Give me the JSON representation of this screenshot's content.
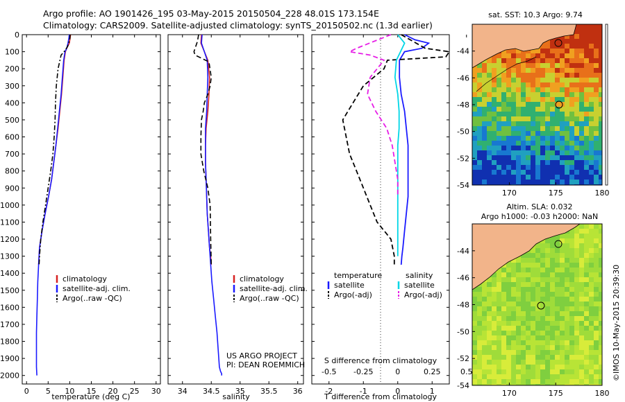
{
  "header": {
    "line1": "Argo profile: AO 1901426_195 03-May-2015 20150504_228 48.01S 173.154E",
    "line2": "Climatology: CARS2009. Satellite-adjusted climatology: synTS_20150502.nc (1.3d earlier)"
  },
  "colors": {
    "climatology": "#d62020",
    "satellite": "#1a1aff",
    "argo": "#000000",
    "salinity_sat": "#00d6e6",
    "salinity_argo": "#e61ee6"
  },
  "chart_data": [
    {
      "type": "line",
      "id": "temperature",
      "xlabel": "temperature (deg C)",
      "xlim": [
        -1,
        31
      ],
      "ylim": [
        2050,
        0
      ],
      "xticks": [
        "0",
        "5",
        "10",
        "15",
        "20",
        "25",
        "30"
      ],
      "yticks": [
        "0",
        "100",
        "200",
        "300",
        "400",
        "500",
        "600",
        "700",
        "800",
        "900",
        "1000",
        "1100",
        "1200",
        "1300",
        "1400",
        "1500",
        "1600",
        "1700",
        "1800",
        "1900",
        "2000"
      ],
      "legend": [
        "climatology",
        "satellite-adj. clim.",
        "Argo(..raw -QC)"
      ],
      "series": [
        {
          "name": "climatology",
          "style": "solid",
          "color": "#d62020",
          "x": [
            10.2,
            10.1,
            9.9,
            9.3,
            9.0,
            8.7,
            8.4,
            8.1,
            7.7,
            7.3,
            6.8,
            6.3,
            5.8,
            5.1,
            4.3,
            3.6,
            3.0,
            2.8
          ],
          "y": [
            0,
            20,
            50,
            80,
            100,
            150,
            250,
            350,
            450,
            550,
            650,
            750,
            850,
            950,
            1050,
            1150,
            1250,
            1350
          ]
        },
        {
          "name": "satellite-adj. clim.",
          "style": "solid",
          "color": "#1a1aff",
          "x": [
            9.9,
            9.8,
            9.6,
            9.3,
            8.9,
            8.6,
            8.3,
            8.0,
            7.6,
            7.2,
            6.8,
            6.3,
            5.8,
            5.1,
            4.3,
            3.6,
            3.0,
            2.8,
            2.6,
            2.5,
            2.4,
            2.3,
            2.3,
            2.3,
            2.4
          ],
          "y": [
            0,
            20,
            50,
            80,
            100,
            150,
            250,
            350,
            450,
            550,
            650,
            750,
            850,
            950,
            1050,
            1150,
            1250,
            1350,
            1450,
            1550,
            1650,
            1750,
            1850,
            1950,
            2000
          ]
        },
        {
          "name": "Argo(..raw -QC)",
          "style": "dashdot",
          "color": "#000000",
          "x": [
            10.1,
            10.0,
            9.5,
            8.7,
            8.0,
            7.3,
            6.9,
            6.7,
            6.6,
            6.4,
            6.1,
            5.6,
            5.0,
            4.4,
            3.8,
            3.3,
            3.0,
            2.9
          ],
          "y": [
            0,
            30,
            70,
            100,
            120,
            200,
            300,
            400,
            500,
            600,
            700,
            800,
            900,
            1000,
            1100,
            1200,
            1300,
            1350
          ]
        }
      ]
    },
    {
      "type": "line",
      "id": "salinity",
      "xlabel": "salinity",
      "xlim": [
        33.75,
        36.1
      ],
      "ylim": [
        2050,
        0
      ],
      "xticks": [
        "34",
        "34.5",
        "35",
        "35.5",
        "36"
      ],
      "legend": [
        "climatology",
        "satellite-adj. clim.",
        "Argo(..raw -QC)"
      ],
      "series": [
        {
          "name": "climatology",
          "style": "solid",
          "color": "#d62020",
          "x": [
            34.33,
            34.32,
            34.38,
            34.44,
            34.47,
            34.46,
            34.44,
            34.41,
            34.4,
            34.4,
            34.41,
            34.42,
            34.43,
            34.45,
            34.47,
            34.49,
            34.5
          ],
          "y": [
            0,
            50,
            100,
            150,
            250,
            350,
            450,
            550,
            650,
            750,
            850,
            950,
            1050,
            1150,
            1250,
            1300,
            1350
          ]
        },
        {
          "name": "satellite-adj. clim.",
          "style": "solid",
          "color": "#1a1aff",
          "x": [
            34.34,
            34.33,
            34.38,
            34.43,
            34.44,
            34.43,
            34.42,
            34.4,
            34.4,
            34.4,
            34.41,
            34.42,
            34.43,
            34.45,
            34.47,
            34.49,
            34.51,
            34.54,
            34.57,
            34.6,
            34.62,
            34.64,
            34.66,
            34.68,
            34.68
          ],
          "y": [
            0,
            50,
            100,
            150,
            250,
            350,
            450,
            550,
            650,
            750,
            850,
            950,
            1050,
            1150,
            1250,
            1350,
            1450,
            1550,
            1650,
            1750,
            1850,
            1950,
            1975,
            1990,
            2000
          ]
        },
        {
          "name": "Argo(..raw -QC)",
          "style": "dashed",
          "color": "#000000",
          "x": [
            34.28,
            34.26,
            34.2,
            34.22,
            34.46,
            34.5,
            34.48,
            34.44,
            34.38,
            34.36,
            34.33,
            34.32,
            34.32,
            34.37,
            34.44,
            34.48,
            34.49,
            34.5
          ],
          "y": [
            0,
            40,
            100,
            120,
            160,
            250,
            300,
            350,
            400,
            450,
            500,
            600,
            700,
            800,
            900,
            1000,
            1200,
            1350
          ]
        }
      ]
    },
    {
      "type": "line",
      "id": "differences",
      "xlabel_top": "S difference from climatology",
      "xlabel": "T difference from climatology",
      "xlim": [
        -2.5,
        1.5
      ],
      "ylim": [
        2050,
        0
      ],
      "xticks_T": [
        "-2",
        "-1",
        "0",
        "1"
      ],
      "xticks_S": [
        "-0.5",
        "-0.25",
        "0",
        "0.25",
        "0.5"
      ],
      "legend_titles": [
        "temperature",
        "salinity"
      ],
      "legend": [
        "satellite",
        "Argo(-adj)",
        "satellite",
        "Argo(-adj)"
      ],
      "series": [
        {
          "name": "satellite",
          "quantity": "temperature",
          "style": "solid",
          "color": "#1a1aff",
          "x": [
            0.2,
            0.5,
            0.9,
            0.7,
            0.2,
            0.05,
            0.05,
            0.1,
            0.2,
            0.25,
            0.3,
            0.3,
            0.3,
            0.3,
            0.25,
            0.2,
            0.15,
            0.12,
            0.1
          ],
          "y": [
            0,
            30,
            50,
            80,
            100,
            150,
            250,
            350,
            450,
            550,
            650,
            750,
            850,
            950,
            1050,
            1150,
            1250,
            1300,
            1350
          ]
        },
        {
          "name": "Argo(-adj)",
          "quantity": "temperature",
          "style": "dashed",
          "color": "#000000",
          "x": [
            0.1,
            0.8,
            1.5,
            1.4,
            -0.3,
            -0.4,
            -1.0,
            -1.3,
            -1.6,
            -1.5,
            -1.4,
            -1.2,
            -1.0,
            -0.8,
            -0.6,
            -0.2,
            -0.1,
            -0.1
          ],
          "y": [
            0,
            80,
            100,
            130,
            150,
            200,
            300,
            400,
            500,
            600,
            700,
            800,
            900,
            1000,
            1100,
            1200,
            1300,
            1350
          ]
        },
        {
          "name": "satellite",
          "quantity": "salinity",
          "style": "solid",
          "color": "#00d6e6",
          "x": [
            0.0,
            0.05,
            0.02,
            -0.01,
            -0.02,
            0.0,
            0.01,
            0.01,
            0.0,
            0.0,
            0.0,
            0.0,
            0.0,
            0.0,
            0.0
          ],
          "y": [
            0,
            50,
            100,
            150,
            250,
            350,
            450,
            550,
            650,
            750,
            850,
            950,
            1050,
            1150,
            1300
          ]
        },
        {
          "name": "Argo(-adj)",
          "quantity": "salinity",
          "style": "dashed",
          "color": "#e61ee6",
          "x": [
            -0.05,
            -0.3,
            -0.35,
            -0.2,
            -0.1,
            -0.2,
            -0.22,
            -0.16,
            -0.08,
            -0.04,
            -0.02,
            0.0,
            0.0
          ],
          "y": [
            0,
            80,
            100,
            120,
            150,
            250,
            350,
            450,
            550,
            650,
            750,
            850,
            950
          ]
        }
      ]
    },
    {
      "type": "heatmap",
      "id": "sst-map",
      "title": "sat. SST: 10.3  Argo: 9.74",
      "xlim": [
        166,
        180
      ],
      "ylim": [
        -54,
        -42
      ],
      "xticks": [
        "170",
        "175",
        "180"
      ],
      "yticks": [
        "-44",
        "-46",
        "-48",
        "-50",
        "-52",
        "-54"
      ],
      "float_position": {
        "lon": 173.154,
        "lat": -48.01
      }
    },
    {
      "type": "heatmap",
      "id": "sla-map",
      "title": "Altim. SLA: 0.032",
      "subtitle": "Argo h1000: -0.03 h2000: NaN",
      "xlim": [
        166,
        180
      ],
      "ylim": [
        -54,
        -42
      ],
      "xticks": [
        "170",
        "175",
        "180"
      ],
      "yticks": [
        "-44",
        "-46",
        "-48",
        "-50",
        "-52",
        "-54"
      ],
      "float_position": {
        "lon": 173.154,
        "lat": -48.01
      }
    }
  ],
  "notes": {
    "project": "US ARGO PROJECT",
    "pi": "PI: DEAN ROEMMICH",
    "credit": "©IMOS 10-May-2015 20:39:30"
  }
}
